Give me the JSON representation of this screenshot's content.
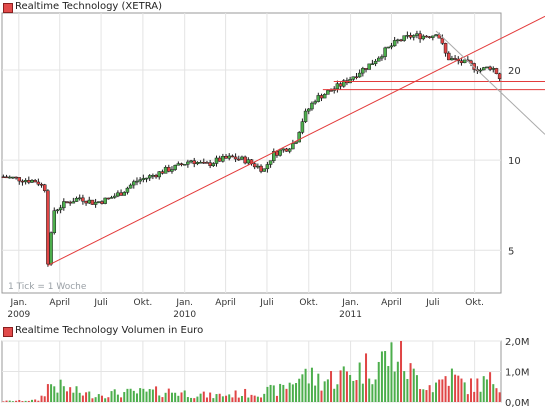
{
  "chart_data": [
    {
      "type": "candlestick",
      "title": "Realtime Technology (XETRA)",
      "y_scale": "log",
      "ylim": [
        3.6,
        31
      ],
      "yticks": [
        5,
        10,
        20
      ],
      "xlim": [
        "2008-11-25",
        "2011-11-28"
      ],
      "x_ticks": [
        {
          "date": "2009-01-01",
          "label": "Jan.",
          "year": "2009"
        },
        {
          "date": "2009-04-01",
          "label": "April",
          "year": ""
        },
        {
          "date": "2009-07-01",
          "label": "Juli",
          "year": ""
        },
        {
          "date": "2009-10-01",
          "label": "Okt.",
          "year": ""
        },
        {
          "date": "2010-01-01",
          "label": "Jan.",
          "year": "2010"
        },
        {
          "date": "2010-04-01",
          "label": "April",
          "year": ""
        },
        {
          "date": "2010-07-01",
          "label": "Juli",
          "year": ""
        },
        {
          "date": "2010-10-01",
          "label": "Okt.",
          "year": ""
        },
        {
          "date": "2011-01-01",
          "label": "Jan.",
          "year": "2011"
        },
        {
          "date": "2011-04-01",
          "label": "April",
          "year": ""
        },
        {
          "date": "2011-07-01",
          "label": "Juli",
          "year": ""
        },
        {
          "date": "2011-10-01",
          "label": "Okt.",
          "year": ""
        }
      ],
      "price_path": [
        [
          "2008-11-28",
          8.8
        ],
        [
          "2009-01-15",
          8.6
        ],
        [
          "2009-02-10",
          8.5
        ],
        [
          "2009-03-01",
          8.0
        ],
        [
          "2009-03-06",
          4.6
        ],
        [
          "2009-03-20",
          6.8
        ],
        [
          "2009-04-15",
          7.2
        ],
        [
          "2009-05-15",
          7.5
        ],
        [
          "2009-06-15",
          7.2
        ],
        [
          "2009-07-15",
          7.4
        ],
        [
          "2009-08-15",
          7.8
        ],
        [
          "2009-09-15",
          8.5
        ],
        [
          "2009-10-15",
          8.8
        ],
        [
          "2009-11-15",
          9.2
        ],
        [
          "2009-12-15",
          9.5
        ],
        [
          "2010-01-15",
          10.0
        ],
        [
          "2010-02-15",
          9.6
        ],
        [
          "2010-03-15",
          10.0
        ],
        [
          "2010-04-15",
          10.2
        ],
        [
          "2010-05-15",
          10.0
        ],
        [
          "2010-06-05",
          9.6
        ],
        [
          "2010-06-25",
          9.3
        ],
        [
          "2010-07-15",
          10.5
        ],
        [
          "2010-08-15",
          11.0
        ],
        [
          "2010-09-01",
          11.5
        ],
        [
          "2010-09-20",
          14.0
        ],
        [
          "2010-10-15",
          16.0
        ],
        [
          "2010-11-15",
          17.0
        ],
        [
          "2010-12-15",
          18.0
        ],
        [
          "2011-01-15",
          19.5
        ],
        [
          "2011-02-15",
          21.0
        ],
        [
          "2011-03-15",
          23.0
        ],
        [
          "2011-04-15",
          25.0
        ],
        [
          "2011-05-15",
          26.0
        ],
        [
          "2011-06-15",
          26.0
        ],
        [
          "2011-07-01",
          26.2
        ],
        [
          "2011-07-10",
          27.0
        ],
        [
          "2011-08-01",
          22.0
        ],
        [
          "2011-08-20",
          21.5
        ],
        [
          "2011-09-15",
          21.0
        ],
        [
          "2011-10-15",
          20.0
        ],
        [
          "2011-11-05",
          20.5
        ],
        [
          "2011-11-15",
          20.0
        ],
        [
          "2011-11-25",
          18.8
        ]
      ],
      "lines": [
        {
          "kind": "trend",
          "color": "#e33b3b",
          "from": [
            "2009-03-06",
            4.45
          ],
          "to": [
            "2011-11-28",
            25.5
          ]
        },
        {
          "kind": "horizontal",
          "color": "#e33b3b",
          "from": [
            "2010-11-25",
            18.3
          ],
          "to": [
            "2011-11-28",
            18.3
          ]
        },
        {
          "kind": "horizontal",
          "color": "#e33b3b",
          "from": [
            "2010-11-01",
            17.2
          ],
          "to": [
            "2011-11-28",
            17.2
          ]
        },
        {
          "kind": "resistance",
          "color": "#aaaaaa",
          "from": [
            "2011-07-08",
            27.0
          ],
          "to": [
            "2011-11-28",
            16.8
          ]
        }
      ],
      "note": "1 Tick = 1 Woche",
      "colors": {
        "up": "#4cae4c",
        "down": "#e04545",
        "wick": "#1a1a1a",
        "grid": "#e4e4e4",
        "trend": "#e33b3b",
        "resistance": "#aaaaaa"
      }
    },
    {
      "type": "bar",
      "title": "Realtime Technology Volumen in Euro",
      "ylim": [
        0,
        2000000
      ],
      "yticks": [
        {
          "value": 0,
          "label": "0,0M"
        },
        {
          "value": 1000000,
          "label": "1,0M"
        },
        {
          "value": 2000000,
          "label": "2,0M"
        }
      ],
      "volume_profile": [
        [
          "2008-11-28",
          0.03
        ],
        [
          "2009-02-15",
          0.06
        ],
        [
          "2009-03-10",
          0.6
        ],
        [
          "2009-04-20",
          0.4
        ],
        [
          "2009-06-01",
          0.25
        ],
        [
          "2009-09-01",
          0.3
        ],
        [
          "2009-12-01",
          0.35
        ],
        [
          "2010-03-01",
          0.2
        ],
        [
          "2010-06-01",
          0.3
        ],
        [
          "2010-08-01",
          0.4
        ],
        [
          "2010-09-15",
          0.9
        ],
        [
          "2010-11-01",
          0.7
        ],
        [
          "2011-01-15",
          1.0
        ],
        [
          "2011-03-01",
          1.3
        ],
        [
          "2011-04-15",
          1.6
        ],
        [
          "2011-05-15",
          0.9
        ],
        [
          "2011-07-01",
          0.5
        ],
        [
          "2011-08-05",
          0.9
        ],
        [
          "2011-09-15",
          0.5
        ],
        [
          "2011-11-10",
          0.7
        ]
      ]
    }
  ],
  "legend": {
    "price_label": "Realtime Technology (XETRA)",
    "volume_label": "Realtime Technology Volumen in Euro",
    "note": "1 Tick = 1 Woche"
  }
}
